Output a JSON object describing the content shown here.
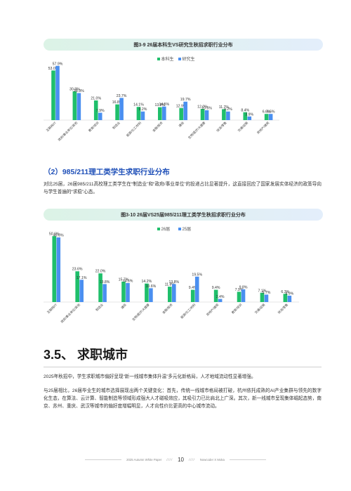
{
  "chart1": {
    "title": "图3-9 26届本科生VS研究生秋招求职行业分布",
    "legend": [
      "本科生",
      "研究生"
    ],
    "colors": [
      "#1fbf6b",
      "#4a8ff0"
    ]
  },
  "chart2": {
    "title": "图3-10 26届VS25届985/211理工类学生秋招求职行业分布",
    "legend": [
      "26届",
      "25届"
    ],
    "colors": [
      "#1fbf6b",
      "#4a8ff0"
    ]
  },
  "chart_data": [
    {
      "type": "bar",
      "title": "图3-9 26届本科生VS研究生秋招求职行业分布",
      "categories": [
        "互联网/IT",
        "政府/事业单位/其他",
        "教育/培训",
        "制造业",
        "能源/化工/材料",
        "金融/投资",
        "通信",
        "生物/医疗/大健康",
        "快消/零售",
        "交通/运输",
        "房地产/建筑"
      ],
      "series": [
        {
          "name": "本科生",
          "values": [
            53.0,
            30.8,
            21.0,
            16.8,
            14.1,
            13.8,
            12.9,
            12.0,
            11.7,
            8.4,
            6.6
          ]
        },
        {
          "name": "研究生",
          "values": [
            57.9,
            28.9,
            7.9,
            23.7,
            9.2,
            14.5,
            19.7,
            10.5,
            9.2,
            3.9,
            6.6
          ]
        }
      ],
      "ylim": [
        0,
        60
      ],
      "legend_position": "top-center"
    },
    {
      "type": "bar",
      "title": "图3-10 26届VS25届985/211理工类学生秋招求职行业分布",
      "categories": [
        "互联网/IT",
        "政府/事业单位/其他",
        "制造业",
        "通信",
        "生物/医疗/大健康",
        "金融/投资",
        "能源/化工/材料",
        "房地产/建筑",
        "教育/培训",
        "交通/运输",
        "快消/零售"
      ],
      "series": [
        {
          "name": "26届",
          "values": [
            50.6,
            23.6,
            22.0,
            15.7,
            14.2,
            11.8,
            9.4,
            9.4,
            7.9,
            7.1,
            6.3
          ]
        },
        {
          "name": "25届",
          "values": [
            49.6,
            17.1,
            13.8,
            14.6,
            10.6,
            13.8,
            19.5,
            2.4,
            9.8,
            5.7,
            4.9
          ]
        }
      ],
      "ylim": [
        0,
        55
      ],
      "legend_position": "top-center"
    }
  ],
  "section": {
    "heading": "（2）985/211理工类学生求职行业分布",
    "paragraph": "对比25届，26届985/211高校理工类学生在“制造业”和“政府/事业单位”的投递占比显著提升，这直接回应了国家发展实体经济的政策导向与学生普遍的“求稳”心态。"
  },
  "city": {
    "heading": "3.5、 求职城市",
    "p1": "2025年秋招中，学生求职城市偏好呈现“新一线城市集体升温”多元化新格局，人才地域流动性显著增强。",
    "p2": "与25届相比，26届毕业生的城市选择展现出两个关键变化：首先，传统一线城市格局被打破，杭州依托成熟的AI产业集群与领先的数字化生态，在算法、云计算、智能制造等领域形成强大人才磁吸效应，其吸引力已比肩北上广深。其次，新一线城市呈现集体崛起态势，南京、苏州、重庆、武汉等城市的偏好度增幅明显，人才向性价比更高的中心城市流动。"
  },
  "footer": {
    "left": "2025 Autumn White Paper",
    "sep": "////",
    "page": "10",
    "right": "Nowcoder X Moka"
  }
}
